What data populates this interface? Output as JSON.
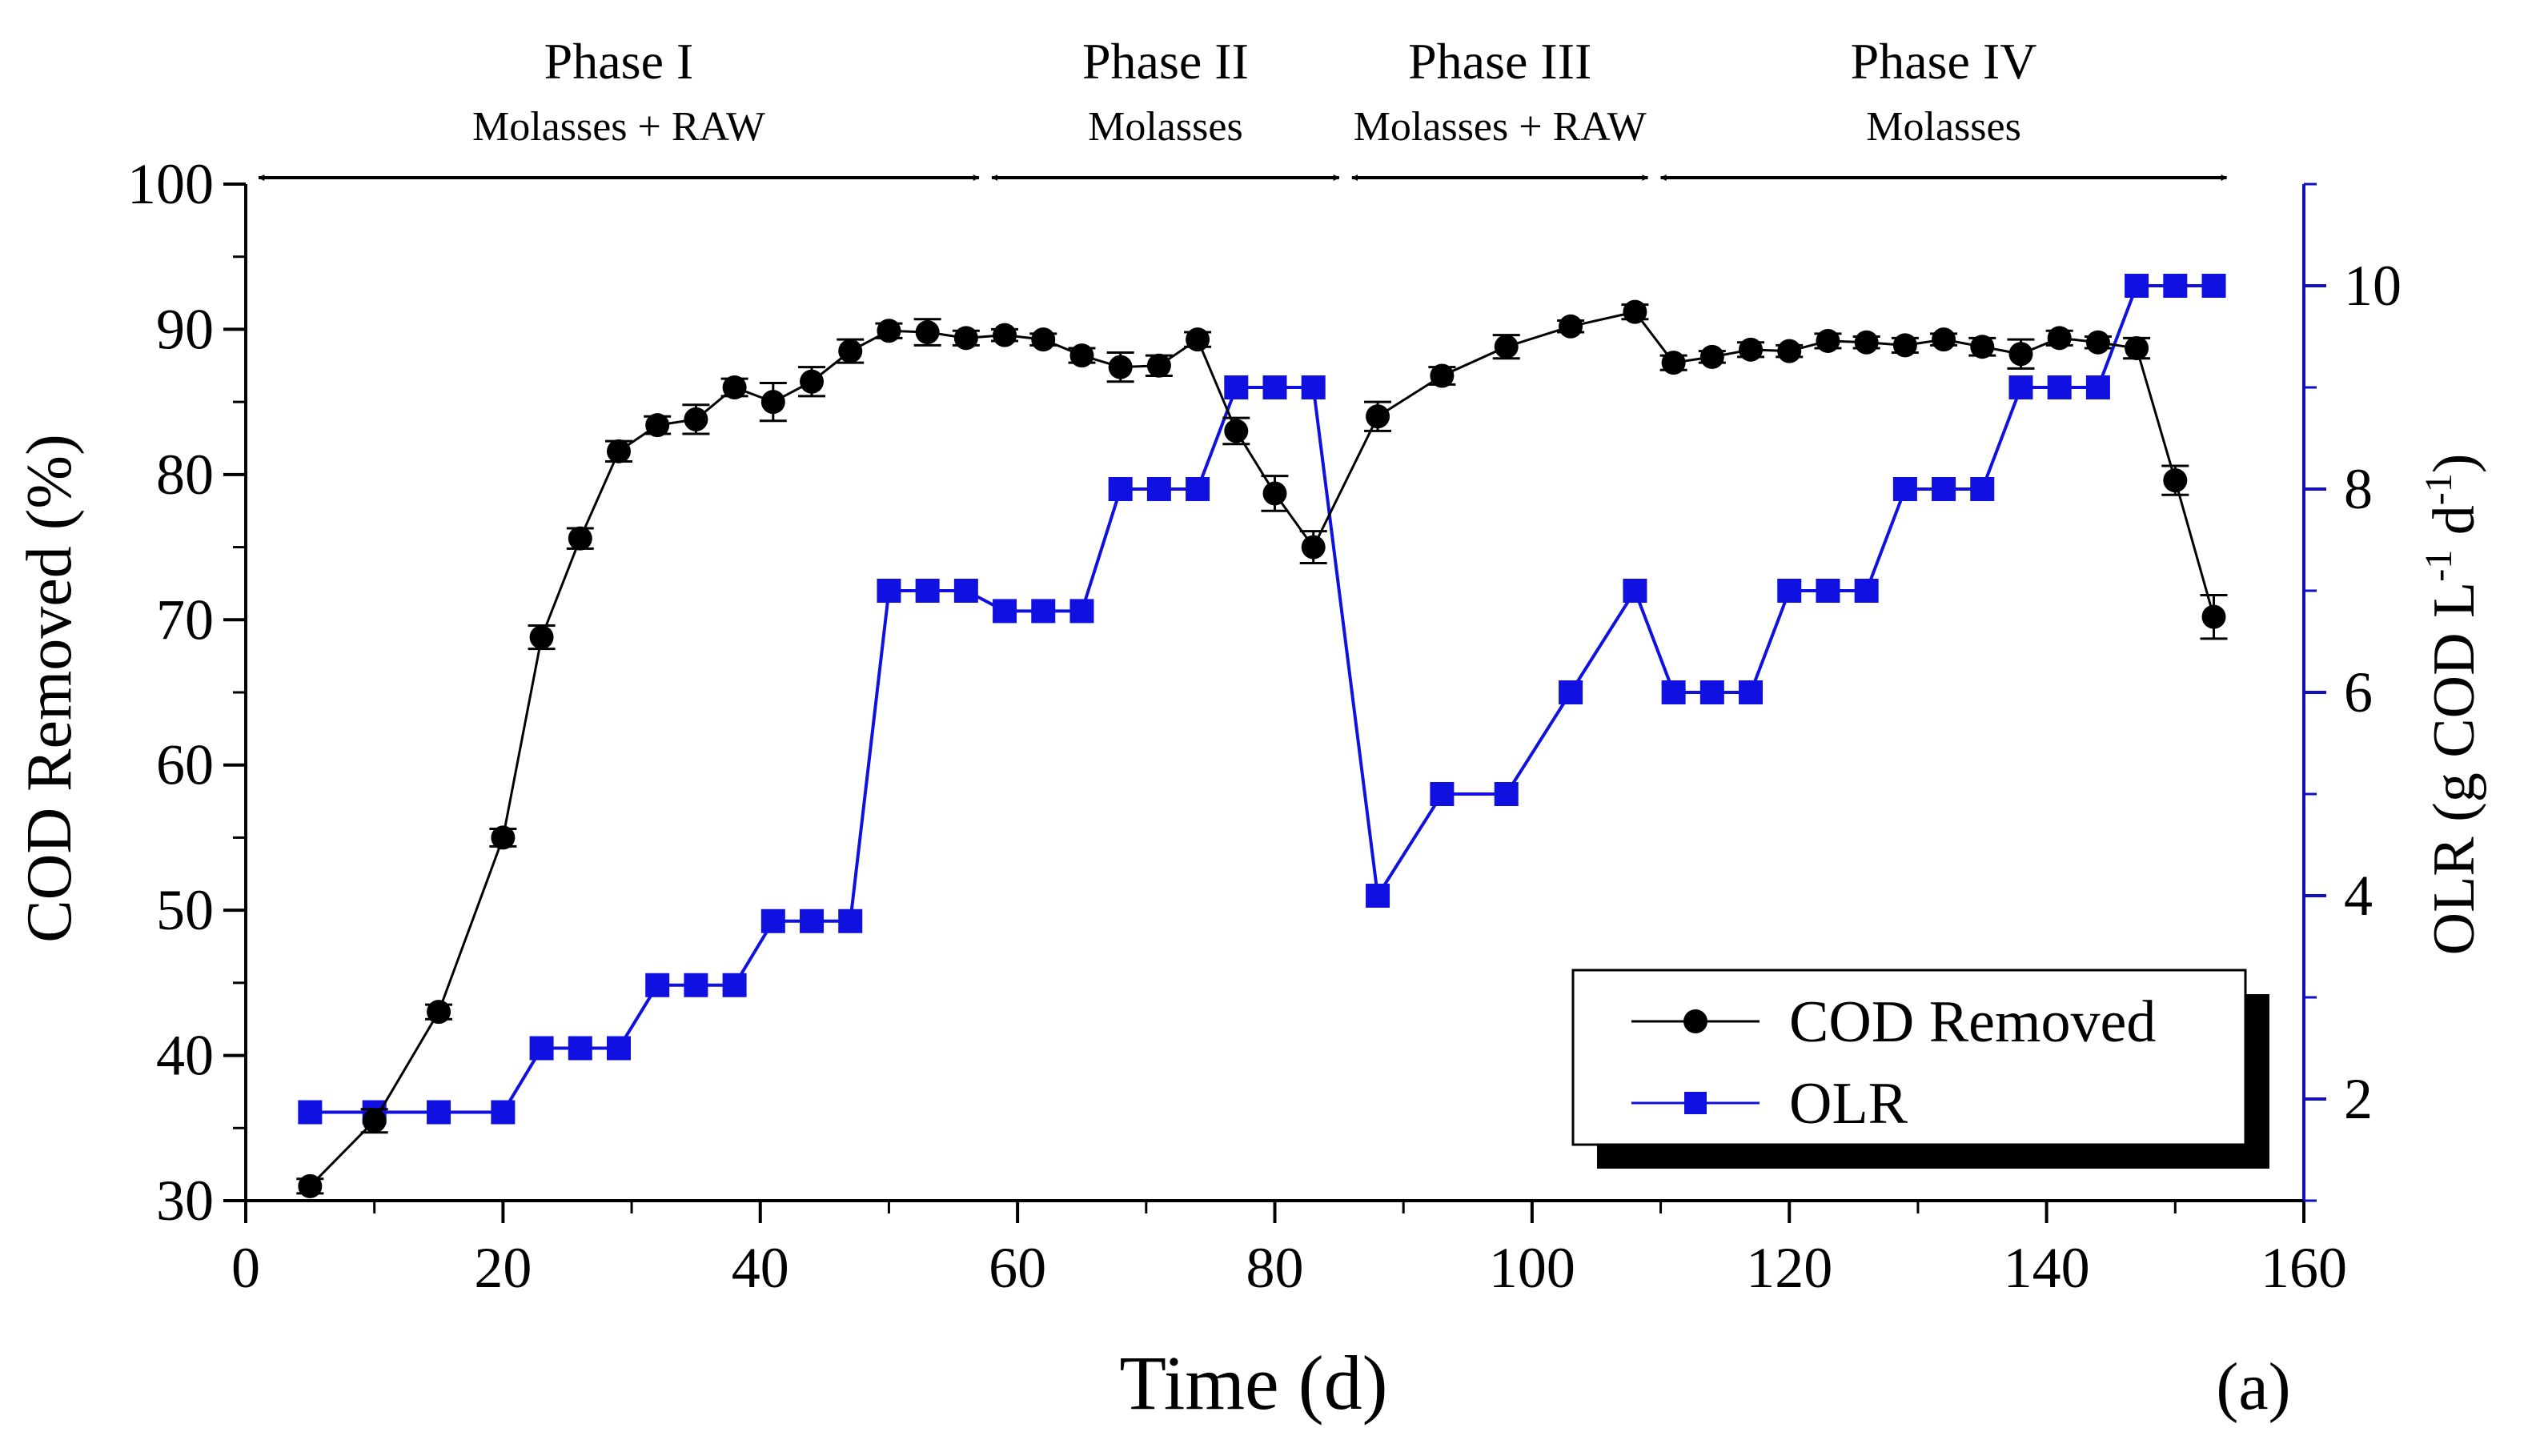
{
  "chart_data": {
    "type": "line",
    "panel_label": "(a)",
    "xlabel": "Time (d)",
    "ylabel_left": "COD Removed (%)",
    "ylabel_right": {
      "main": "OLR (g COD L",
      "exp1": "-1",
      "mid": " d",
      "exp2": "-1",
      "close": ")"
    },
    "xlim": [
      0,
      160
    ],
    "ylim_left": [
      30,
      100
    ],
    "ylim_right": [
      1,
      11
    ],
    "xticks": [
      0,
      20,
      40,
      60,
      80,
      100,
      120,
      140,
      160
    ],
    "yticks_left": [
      30,
      40,
      50,
      60,
      70,
      80,
      90,
      100
    ],
    "yticks_right": [
      2,
      4,
      6,
      8,
      10
    ],
    "colors": {
      "cod": "#000000",
      "olr": "#1010e0",
      "axis_right": "#1010c0"
    },
    "phases": [
      {
        "name": "Phase I",
        "feed": "Molasses + RAW",
        "start": 1,
        "end": 57
      },
      {
        "name": "Phase II",
        "feed": "Molasses",
        "start": 58,
        "end": 85
      },
      {
        "name": "Phase III",
        "feed": "Molasses + RAW",
        "start": 86,
        "end": 109
      },
      {
        "name": "Phase IV",
        "feed": "Molasses",
        "start": 110,
        "end": 154
      }
    ],
    "legend": {
      "position": "bottom-right",
      "entries": [
        "COD Removed",
        "OLR"
      ]
    },
    "series": [
      {
        "name": "COD Removed",
        "axis": "left",
        "marker": "circle",
        "x": [
          5,
          10,
          15,
          20,
          23,
          26,
          29,
          32,
          35,
          38,
          41,
          44,
          47,
          50,
          53,
          56,
          59,
          62,
          65,
          68,
          71,
          74,
          77,
          80,
          83,
          88,
          93,
          98,
          103,
          108,
          111,
          114,
          117,
          120,
          123,
          126,
          129,
          132,
          135,
          138,
          141,
          144,
          147,
          150,
          153
        ],
        "y": [
          31.0,
          35.5,
          43.0,
          55.0,
          68.8,
          75.6,
          81.6,
          83.4,
          83.8,
          86.0,
          85.0,
          86.4,
          88.5,
          89.9,
          89.8,
          89.4,
          89.6,
          89.3,
          88.2,
          87.4,
          87.5,
          89.3,
          83.0,
          78.7,
          75.0,
          84.0,
          86.8,
          88.8,
          90.2,
          91.2,
          87.7,
          88.1,
          88.6,
          88.5,
          89.2,
          89.1,
          88.9,
          89.3,
          88.8,
          88.3,
          89.4,
          89.1,
          88.7,
          79.6,
          70.2
        ],
        "err": [
          0.5,
          0.8,
          0.5,
          0.6,
          0.8,
          0.7,
          0.7,
          0.6,
          1.0,
          0.6,
          1.3,
          1.0,
          0.8,
          0.5,
          0.9,
          0.5,
          0.4,
          0.4,
          0.5,
          1.0,
          0.7,
          0.5,
          0.9,
          1.2,
          1.1,
          1.0,
          0.6,
          0.8,
          0.4,
          0.5,
          0.5,
          0.4,
          0.5,
          0.4,
          0.5,
          0.4,
          0.5,
          0.4,
          0.6,
          1.0,
          0.5,
          0.4,
          0.7,
          1.0,
          1.5
        ]
      },
      {
        "name": "OLR",
        "axis": "right",
        "marker": "square",
        "x": [
          5,
          10,
          15,
          20,
          23,
          26,
          29,
          32,
          35,
          38,
          41,
          44,
          47,
          50,
          53,
          56,
          59,
          62,
          65,
          68,
          71,
          74,
          77,
          80,
          83,
          88,
          93,
          98,
          103,
          108,
          111,
          114,
          117,
          120,
          123,
          126,
          129,
          132,
          135,
          138,
          141,
          144,
          147,
          150,
          153
        ],
        "y": [
          1.87,
          1.87,
          1.87,
          1.87,
          2.5,
          2.5,
          2.5,
          3.12,
          3.12,
          3.12,
          3.75,
          3.75,
          3.75,
          7.0,
          7.0,
          7.0,
          6.8,
          6.8,
          6.8,
          8.0,
          8.0,
          8.0,
          9.0,
          9.0,
          9.0,
          4.0,
          5.0,
          5.0,
          6.0,
          7.0,
          6.0,
          6.0,
          6.0,
          7.0,
          7.0,
          7.0,
          8.0,
          8.0,
          8.0,
          9.0,
          9.0,
          9.0,
          10.0,
          10.0,
          10.0
        ]
      }
    ]
  }
}
